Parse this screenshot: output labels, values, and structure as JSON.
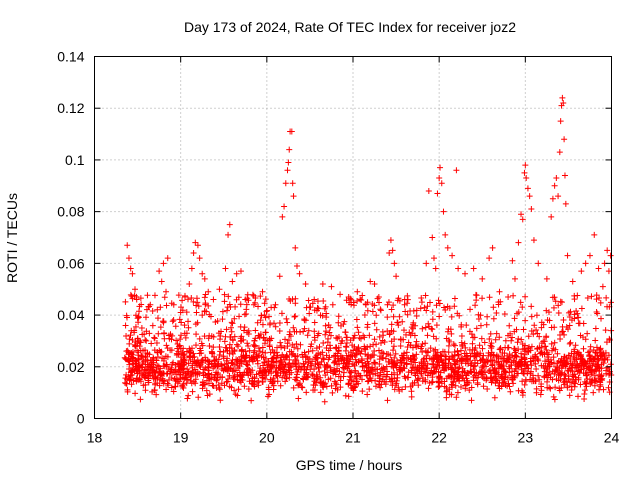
{
  "chart_data": {
    "type": "scatter",
    "title": "Day 173 of 2024, Rate Of TEC Index for receiver joz2",
    "xlabel": "GPS time / hours",
    "ylabel": "ROTI / TECUs",
    "xlim": [
      18,
      24
    ],
    "ylim": [
      0,
      0.14
    ],
    "x_ticks": [
      18,
      19,
      20,
      21,
      22,
      23,
      24
    ],
    "x_tick_labels": [
      "18",
      "19",
      "20",
      "21",
      "22",
      "23",
      "24"
    ],
    "y_ticks": [
      0,
      0.02,
      0.04,
      0.06,
      0.08,
      0.1,
      0.12,
      0.14
    ],
    "y_tick_labels": [
      "0",
      "0.02",
      "0.04",
      "0.06",
      "0.08",
      "0.1",
      "0.12",
      "0.14"
    ],
    "grid": true,
    "marker": "+",
    "series": [
      {
        "name": "ROTI",
        "color": "#ff0000",
        "points": [
          [
            18.38,
            0.067
          ],
          [
            18.4,
            0.062
          ],
          [
            18.42,
            0.058
          ],
          [
            18.44,
            0.056
          ],
          [
            18.47,
            0.05
          ],
          [
            18.49,
            0.046
          ],
          [
            18.55,
            0.035
          ],
          [
            18.6,
            0.03
          ],
          [
            18.7,
            0.031
          ],
          [
            18.75,
            0.057
          ],
          [
            18.78,
            0.053
          ],
          [
            18.8,
            0.06
          ],
          [
            18.83,
            0.049
          ],
          [
            18.85,
            0.062
          ],
          [
            18.92,
            0.044
          ],
          [
            19.0,
            0.041
          ],
          [
            19.05,
            0.047
          ],
          [
            19.1,
            0.052
          ],
          [
            19.13,
            0.058
          ],
          [
            19.15,
            0.064
          ],
          [
            19.17,
            0.068
          ],
          [
            19.2,
            0.067
          ],
          [
            19.22,
            0.062
          ],
          [
            19.25,
            0.056
          ],
          [
            19.28,
            0.054
          ],
          [
            19.32,
            0.049
          ],
          [
            19.38,
            0.046
          ],
          [
            19.45,
            0.05
          ],
          [
            19.52,
            0.058
          ],
          [
            19.55,
            0.071
          ],
          [
            19.57,
            0.075
          ],
          [
            19.6,
            0.053
          ],
          [
            19.65,
            0.056
          ],
          [
            19.7,
            0.057
          ],
          [
            19.75,
            0.046
          ],
          [
            19.85,
            0.044
          ],
          [
            19.95,
            0.049
          ],
          [
            20.05,
            0.043
          ],
          [
            20.1,
            0.044
          ],
          [
            20.15,
            0.055
          ],
          [
            20.18,
            0.078
          ],
          [
            20.2,
            0.082
          ],
          [
            20.22,
            0.091
          ],
          [
            20.24,
            0.096
          ],
          [
            20.25,
            0.099
          ],
          [
            20.26,
            0.104
          ],
          [
            20.27,
            0.111
          ],
          [
            20.29,
            0.111
          ],
          [
            20.3,
            0.091
          ],
          [
            20.31,
            0.086
          ],
          [
            20.33,
            0.066
          ],
          [
            20.35,
            0.059
          ],
          [
            20.38,
            0.056
          ],
          [
            20.45,
            0.052
          ],
          [
            20.55,
            0.046
          ],
          [
            20.65,
            0.052
          ],
          [
            20.75,
            0.051
          ],
          [
            20.85,
            0.048
          ],
          [
            20.95,
            0.047
          ],
          [
            21.05,
            0.049
          ],
          [
            21.15,
            0.044
          ],
          [
            21.2,
            0.053
          ],
          [
            21.25,
            0.052
          ],
          [
            21.3,
            0.047
          ],
          [
            21.4,
            0.044
          ],
          [
            21.42,
            0.064
          ],
          [
            21.44,
            0.069
          ],
          [
            21.46,
            0.065
          ],
          [
            21.48,
            0.06
          ],
          [
            21.5,
            0.055
          ],
          [
            21.6,
            0.046
          ],
          [
            21.7,
            0.037
          ],
          [
            21.8,
            0.045
          ],
          [
            21.85,
            0.06
          ],
          [
            21.88,
            0.088
          ],
          [
            21.92,
            0.07
          ],
          [
            21.94,
            0.062
          ],
          [
            21.96,
            0.058
          ],
          [
            21.98,
            0.087
          ],
          [
            22.0,
            0.093
          ],
          [
            22.01,
            0.097
          ],
          [
            22.03,
            0.091
          ],
          [
            22.05,
            0.08
          ],
          [
            22.07,
            0.071
          ],
          [
            22.1,
            0.066
          ],
          [
            22.15,
            0.063
          ],
          [
            22.2,
            0.096
          ],
          [
            22.22,
            0.058
          ],
          [
            22.3,
            0.056
          ],
          [
            22.4,
            0.058
          ],
          [
            22.5,
            0.054
          ],
          [
            22.58,
            0.062
          ],
          [
            22.62,
            0.066
          ],
          [
            22.7,
            0.049
          ],
          [
            22.8,
            0.047
          ],
          [
            22.85,
            0.061
          ],
          [
            22.88,
            0.054
          ],
          [
            22.92,
            0.068
          ],
          [
            22.95,
            0.079
          ],
          [
            22.97,
            0.077
          ],
          [
            22.99,
            0.095
          ],
          [
            23.0,
            0.098
          ],
          [
            23.01,
            0.093
          ],
          [
            23.03,
            0.089
          ],
          [
            23.05,
            0.086
          ],
          [
            23.07,
            0.081
          ],
          [
            23.1,
            0.069
          ],
          [
            23.15,
            0.06
          ],
          [
            23.25,
            0.054
          ],
          [
            23.3,
            0.078
          ],
          [
            23.32,
            0.085
          ],
          [
            23.34,
            0.09
          ],
          [
            23.36,
            0.093
          ],
          [
            23.38,
            0.086
          ],
          [
            23.4,
            0.103
          ],
          [
            23.41,
            0.115
          ],
          [
            23.42,
            0.121
          ],
          [
            23.43,
            0.124
          ],
          [
            23.44,
            0.122
          ],
          [
            23.45,
            0.108
          ],
          [
            23.46,
            0.094
          ],
          [
            23.47,
            0.083
          ],
          [
            23.49,
            0.063
          ],
          [
            23.55,
            0.053
          ],
          [
            23.65,
            0.057
          ],
          [
            23.7,
            0.06
          ],
          [
            23.75,
            0.063
          ],
          [
            23.8,
            0.071
          ],
          [
            23.85,
            0.058
          ],
          [
            23.9,
            0.051
          ],
          [
            23.92,
            0.06
          ],
          [
            23.95,
            0.065
          ],
          [
            23.97,
            0.057
          ],
          [
            23.99,
            0.063
          ]
        ]
      }
    ],
    "dense_band": {
      "description": "dense noise floor of ROTI values",
      "x_range": [
        18.35,
        24.0
      ],
      "typical_range": [
        0.005,
        0.035
      ],
      "seed": 173
    }
  }
}
